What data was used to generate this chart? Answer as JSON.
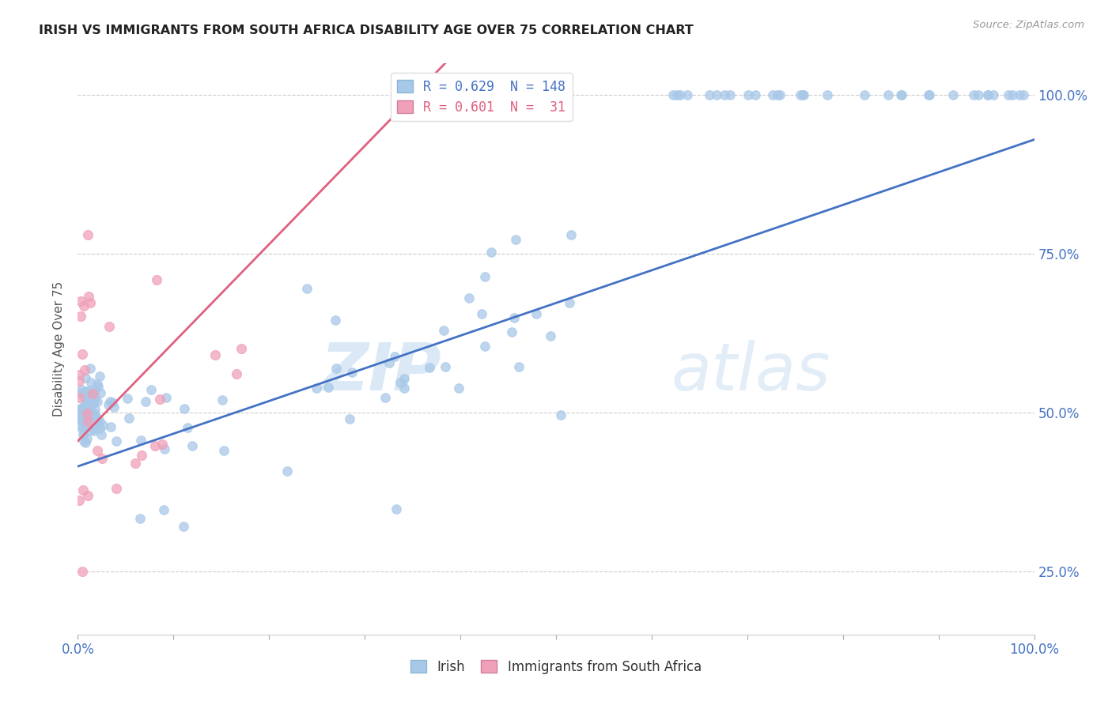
{
  "title": "IRISH VS IMMIGRANTS FROM SOUTH AFRICA DISABILITY AGE OVER 75 CORRELATION CHART",
  "source": "Source: ZipAtlas.com",
  "ylabel": "Disability Age Over 75",
  "legend_label_irish": "Irish",
  "legend_label_immigrants": "Immigrants from South Africa",
  "irish_color": "#a8c8e8",
  "immigrant_color": "#f0a0b8",
  "irish_line_color": "#4472c4",
  "immigrant_line_color": "#e06080",
  "background_color": "#ffffff",
  "watermark_zip": "ZIP",
  "watermark_atlas": "atlas",
  "irish_R": 0.629,
  "irish_N": 148,
  "immigrant_R": 0.601,
  "immigrant_N": 31,
  "irish_line_intercept": 0.415,
  "irish_line_slope": 0.515,
  "immigrant_line_intercept": 0.455,
  "immigrant_line_slope": 1.55,
  "xlim": [
    0.0,
    1.0
  ],
  "ylim": [
    0.15,
    1.05
  ],
  "yticks": [
    0.25,
    0.5,
    0.75,
    1.0
  ],
  "ytick_labels": [
    "25.0%",
    "50.0%",
    "75.0%",
    "100.0%"
  ],
  "xtick_positions": [
    0.0,
    0.1,
    0.2,
    0.3,
    0.4,
    0.5,
    0.6,
    0.7,
    0.8,
    0.9,
    1.0
  ],
  "xtick_labels": [
    "0.0%",
    "",
    "",
    "",
    "",
    "",
    "",
    "",
    "",
    "",
    "100.0%"
  ]
}
